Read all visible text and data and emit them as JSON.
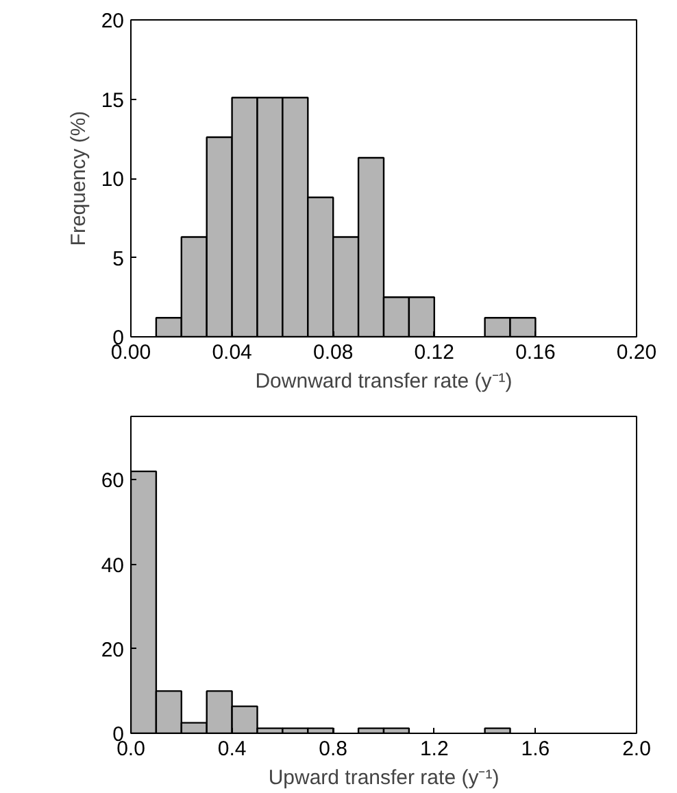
{
  "chart_data": [
    {
      "type": "histogram",
      "xlabel": "Downward transfer rate (y⁻¹)",
      "ylabel": "Frequency (%)",
      "color": "#b4b4b4",
      "bins": [
        0.0,
        0.01,
        0.02,
        0.03,
        0.04,
        0.05,
        0.06,
        0.07,
        0.08,
        0.09,
        0.1,
        0.11,
        0.12,
        0.13,
        0.14,
        0.15,
        0.16,
        0.17,
        0.18,
        0.19,
        0.2
      ],
      "values": [
        0,
        1.2,
        6.3,
        12.6,
        15.1,
        15.1,
        15.1,
        8.8,
        6.3,
        11.3,
        2.5,
        2.5,
        0,
        0,
        1.2,
        1.2,
        0,
        0,
        0,
        0
      ],
      "xlim": [
        0,
        0.2
      ],
      "xticks": [
        {
          "value": 0,
          "label": "0.00"
        },
        {
          "value": 0.04,
          "label": "0.04"
        },
        {
          "value": 0.08,
          "label": "0.08"
        },
        {
          "value": 0.12,
          "label": "0.12"
        },
        {
          "value": 0.16,
          "label": "0.16"
        },
        {
          "value": 0.2,
          "label": "0.20"
        }
      ],
      "ylim": [
        0,
        20
      ],
      "yticks": [
        0,
        5,
        10,
        15,
        20
      ],
      "grid": false
    },
    {
      "type": "histogram",
      "xlabel": "Upward transfer rate (y⁻¹)",
      "color": "#b4b4b4",
      "bins": [
        0.0,
        0.1,
        0.2,
        0.3,
        0.4,
        0.5,
        0.6,
        0.7,
        0.8,
        0.9,
        1.0,
        1.1,
        1.2,
        1.3,
        1.4,
        1.5,
        1.6,
        1.7,
        1.8,
        1.9,
        2.0
      ],
      "values": [
        62,
        10,
        2.5,
        10,
        6.4,
        1.2,
        1.2,
        1.2,
        0,
        1.2,
        1.2,
        0,
        0,
        0,
        1.2,
        0,
        0,
        0,
        0,
        0
      ],
      "xlim": [
        0,
        2.0
      ],
      "xticks": [
        {
          "value": 0,
          "label": "0.0"
        },
        {
          "value": 0.4,
          "label": "0.4"
        },
        {
          "value": 0.8,
          "label": "0.8"
        },
        {
          "value": 1.2,
          "label": "1.2"
        },
        {
          "value": 1.6,
          "label": "1.6"
        },
        {
          "value": 2.0,
          "label": "2.0"
        }
      ],
      "ylim": [
        0,
        75
      ],
      "yticks": [
        0,
        20,
        40,
        60
      ],
      "grid": false
    }
  ]
}
